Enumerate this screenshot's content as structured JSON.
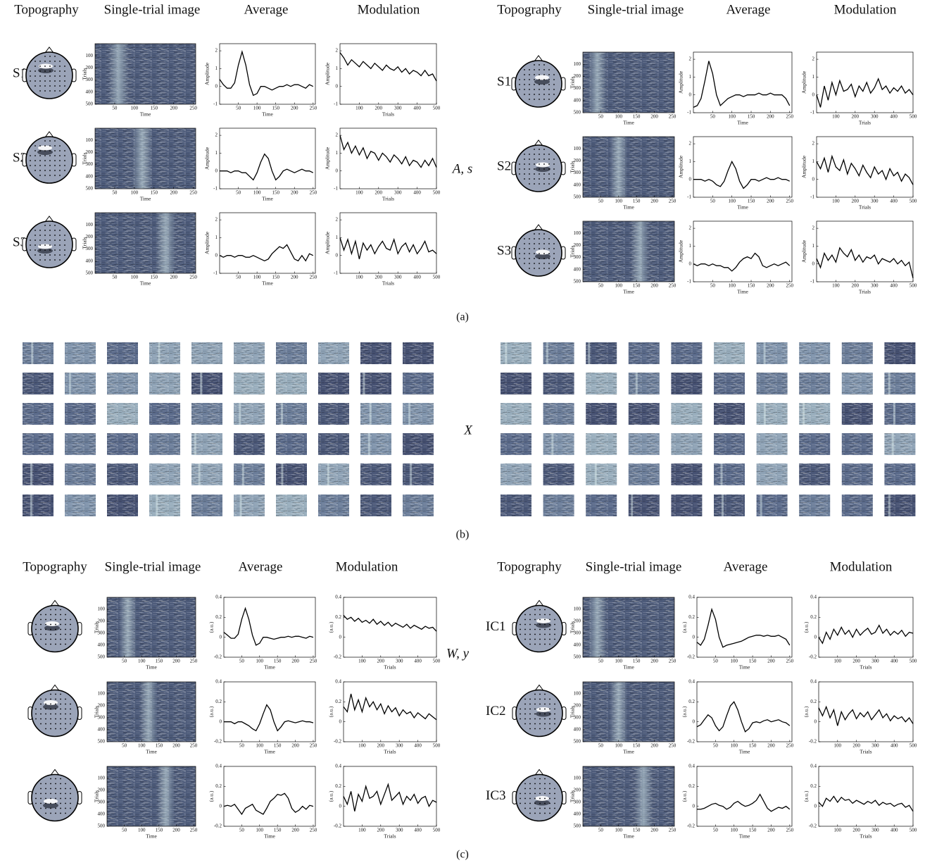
{
  "panel_a": {
    "caption": "(a)",
    "center_label": "A, s",
    "axes": {
      "image": {
        "xlabel": "Time",
        "ylabel": "Trials",
        "xlim": [
          0,
          256
        ],
        "xticks": [
          50,
          100,
          150,
          200,
          250
        ],
        "ylim": [
          0,
          500
        ],
        "yticks": [
          100,
          200,
          300,
          400,
          500
        ]
      },
      "average": {
        "xlabel": "Time",
        "ylabel": "Amplitude",
        "x": [
          0,
          10,
          20,
          30,
          40,
          50,
          60,
          70,
          80,
          90,
          100,
          110,
          120,
          130,
          140,
          150,
          160,
          170,
          180,
          190,
          200,
          210,
          220,
          230,
          240,
          250
        ],
        "xlim": [
          0,
          256
        ],
        "xticks": [
          50,
          100,
          150,
          200,
          250
        ],
        "ylim": [
          -1,
          2.4
        ],
        "yticks": [
          -1,
          0,
          1,
          2
        ]
      },
      "modulation": {
        "xlabel": "Trials",
        "ylabel": "Amplitude",
        "x": [
          0,
          20,
          40,
          60,
          80,
          100,
          120,
          140,
          160,
          180,
          200,
          220,
          240,
          260,
          280,
          300,
          320,
          340,
          360,
          380,
          400,
          420,
          440,
          460,
          480,
          500
        ],
        "xlim": [
          0,
          500
        ],
        "xticks": [
          100,
          200,
          300,
          400,
          500
        ],
        "ylim": [
          -1,
          2.4
        ],
        "yticks": [
          -1,
          0,
          1,
          2
        ]
      }
    },
    "halves": [
      {
        "headers": [
          "Topography",
          "Single-trial image",
          "Average",
          "Modulation"
        ],
        "rows": [
          {
            "label": "S1",
            "average": [
              0.4,
              0.1,
              -0.1,
              -0.1,
              0.2,
              1.2,
              1.95,
              1.2,
              0.1,
              -0.5,
              -0.4,
              0,
              0,
              -0.1,
              -0.2,
              -0.1,
              0,
              0,
              0.1,
              0,
              0.1,
              0.1,
              0,
              -0.1,
              0.1,
              0
            ],
            "modulation": [
              1.9,
              1.6,
              1.2,
              1.5,
              1.3,
              1.1,
              1.4,
              1.2,
              1.0,
              1.3,
              1.1,
              0.9,
              1.2,
              1.0,
              0.9,
              1.1,
              0.8,
              1.0,
              0.7,
              0.9,
              0.8,
              0.6,
              0.9,
              0.6,
              0.7,
              0.3
            ]
          },
          {
            "label": "S2",
            "average": [
              0,
              0,
              0,
              -0.1,
              0,
              0,
              -0.1,
              -0.1,
              -0.3,
              -0.5,
              -0.1,
              0.5,
              0.95,
              0.7,
              0,
              -0.5,
              -0.3,
              0,
              0.1,
              0,
              -0.1,
              0,
              0.1,
              0,
              0,
              -0.1
            ],
            "modulation": [
              2.0,
              1.2,
              1.6,
              1.0,
              1.4,
              0.9,
              1.3,
              0.7,
              1.1,
              1.0,
              0.6,
              1.0,
              0.8,
              0.5,
              0.9,
              0.7,
              0.4,
              0.8,
              0.3,
              0.6,
              0.5,
              0.2,
              0.6,
              0.3,
              0.7,
              0.2
            ]
          },
          {
            "label": "S3",
            "average": [
              0,
              -0.1,
              0,
              0,
              -0.1,
              0,
              0,
              -0.1,
              -0.1,
              0,
              -0.1,
              -0.2,
              -0.3,
              -0.2,
              0.1,
              0.3,
              0.5,
              0.4,
              0.6,
              0.2,
              -0.2,
              -0.3,
              0,
              -0.3,
              0.1,
              0
            ],
            "modulation": [
              1.0,
              0.3,
              0.9,
              0.1,
              0.8,
              -0.2,
              0.7,
              0.3,
              0.6,
              0.1,
              0.5,
              0.8,
              0.4,
              0.3,
              0.9,
              0.1,
              0.5,
              0.7,
              0.2,
              0.6,
              0.1,
              0.4,
              0.8,
              0.2,
              0.3,
              0.1
            ]
          }
        ]
      },
      {
        "headers": [
          "Topography",
          "Single-trial image",
          "Average",
          "Modulation"
        ],
        "rows": [
          {
            "label": "S1",
            "average": [
              -0.7,
              -0.6,
              -0.2,
              0.8,
              1.9,
              1.2,
              0,
              -0.6,
              -0.4,
              -0.2,
              -0.1,
              0,
              0,
              -0.1,
              0,
              0,
              0,
              0.1,
              0,
              0,
              0.1,
              0,
              0,
              0,
              -0.2,
              -0.6
            ],
            "modulation": [
              0,
              -0.7,
              0.5,
              -0.3,
              0.7,
              0,
              0.8,
              0.2,
              0.3,
              0.6,
              -0.1,
              0.5,
              0.2,
              0.7,
              0.1,
              0.4,
              0.9,
              0.3,
              0.5,
              0.1,
              0.4,
              0.2,
              0.5,
              0.1,
              0.3,
              0
            ]
          },
          {
            "label": "S2",
            "average": [
              0,
              0,
              0,
              -0.1,
              0,
              -0.1,
              -0.3,
              -0.4,
              -0.1,
              0.5,
              1.0,
              0.6,
              -0.1,
              -0.5,
              -0.3,
              0,
              0,
              -0.1,
              0,
              0.1,
              0,
              0,
              0.1,
              0,
              0,
              -0.1
            ],
            "modulation": [
              1.0,
              0.6,
              1.2,
              0.4,
              1.3,
              0.7,
              0.5,
              1.1,
              0.3,
              0.9,
              0.6,
              0.2,
              0.8,
              0.4,
              0.1,
              0.7,
              0.3,
              0.5,
              0,
              0.6,
              0.2,
              0.4,
              -0.1,
              0.3,
              0.1,
              -0.3
            ]
          },
          {
            "label": "S3",
            "average": [
              0,
              -0.1,
              0,
              0,
              -0.1,
              0,
              -0.1,
              -0.1,
              -0.2,
              -0.2,
              -0.4,
              -0.2,
              0.1,
              0.3,
              0.4,
              0.3,
              0.6,
              0.4,
              -0.1,
              -0.2,
              -0.1,
              0,
              -0.1,
              0,
              0.1,
              -0.1
            ],
            "modulation": [
              0.3,
              -0.2,
              0.6,
              0.2,
              0.5,
              0.1,
              0.9,
              0.6,
              0.4,
              0.8,
              0.2,
              0.5,
              0.1,
              0.4,
              0.3,
              0.5,
              0,
              0.3,
              0.2,
              0.1,
              0.3,
              0,
              0.2,
              -0.1,
              0.1,
              -0.8
            ]
          }
        ]
      }
    ]
  },
  "panel_b": {
    "caption": "(b)",
    "center_label": "X"
  },
  "panel_c": {
    "caption": "(c)",
    "center_label": "W, y",
    "axes": {
      "image": {
        "xlabel": "Time",
        "ylabel": "Trials",
        "xlim": [
          0,
          256
        ],
        "xticks": [
          50,
          100,
          150,
          200,
          250
        ],
        "ylim": [
          0,
          500
        ],
        "yticks": [
          100,
          200,
          300,
          400,
          500
        ]
      },
      "average": {
        "xlabel": "Time",
        "ylabel": "(a.u.)",
        "x": [
          0,
          10,
          20,
          30,
          40,
          50,
          60,
          70,
          80,
          90,
          100,
          110,
          120,
          130,
          140,
          150,
          160,
          170,
          180,
          190,
          200,
          210,
          220,
          230,
          240,
          250
        ],
        "xlim": [
          0,
          256
        ],
        "xticks": [
          50,
          100,
          150,
          200,
          250
        ],
        "ylim": [
          -0.2,
          0.4
        ],
        "yticks": [
          -0.2,
          0,
          0.2,
          0.4
        ]
      },
      "modulation": {
        "xlabel": "Trials",
        "ylabel": "(a.u.)",
        "x": [
          0,
          20,
          40,
          60,
          80,
          100,
          120,
          140,
          160,
          180,
          200,
          220,
          240,
          260,
          280,
          300,
          320,
          340,
          360,
          380,
          400,
          420,
          440,
          460,
          480,
          500
        ],
        "xlim": [
          0,
          500
        ],
        "xticks": [
          100,
          200,
          300,
          400,
          500
        ],
        "ylim": [
          -0.2,
          0.4
        ],
        "yticks": [
          -0.2,
          0,
          0.2,
          0.4
        ]
      }
    },
    "halves": [
      {
        "headers": [
          "Topography",
          "Single-trial image",
          "Average",
          "Modulation"
        ],
        "rows": [
          {
            "average": [
              0.05,
              0.02,
              -0.01,
              -0.01,
              0.03,
              0.18,
              0.29,
              0.18,
              0.02,
              -0.08,
              -0.06,
              0,
              0,
              -0.01,
              -0.02,
              -0.01,
              0,
              0,
              0.01,
              0,
              0.01,
              0.01,
              0,
              -0.01,
              0.01,
              0
            ],
            "modulation": [
              0.22,
              0.18,
              0.2,
              0.16,
              0.19,
              0.15,
              0.17,
              0.14,
              0.18,
              0.13,
              0.16,
              0.12,
              0.15,
              0.11,
              0.14,
              0.12,
              0.1,
              0.13,
              0.09,
              0.12,
              0.1,
              0.08,
              0.11,
              0.09,
              0.1,
              0.06
            ]
          },
          {
            "average": [
              0,
              0,
              0,
              -0.02,
              0,
              0,
              -0.02,
              -0.04,
              -0.07,
              -0.09,
              -0.02,
              0.08,
              0.17,
              0.12,
              0,
              -0.09,
              -0.05,
              0,
              0.01,
              0,
              -0.01,
              0,
              0.01,
              0,
              0,
              -0.01
            ],
            "modulation": [
              0.15,
              0.1,
              0.28,
              0.12,
              0.22,
              0.1,
              0.24,
              0.15,
              0.2,
              0.12,
              0.18,
              0.08,
              0.16,
              0.1,
              0.14,
              0.06,
              0.12,
              0.08,
              0.1,
              0.04,
              0.09,
              0.06,
              0.03,
              0.08,
              0.05,
              0.02
            ]
          },
          {
            "average": [
              0,
              0.01,
              0,
              0.02,
              -0.03,
              -0.08,
              -0.02,
              0,
              0.02,
              -0.04,
              -0.06,
              -0.08,
              -0.02,
              0.05,
              0.08,
              0.12,
              0.11,
              0.13,
              0.08,
              -0.02,
              -0.06,
              -0.04,
              0,
              -0.03,
              0.01,
              0
            ],
            "modulation": [
              0.1,
              0.02,
              0.15,
              -0.05,
              0.12,
              0.05,
              0.2,
              0.08,
              0.1,
              0.15,
              0.02,
              0.12,
              0.22,
              0.06,
              0.1,
              0.14,
              0.02,
              0.1,
              0.06,
              0.12,
              0.03,
              0.08,
              0.1,
              0.0,
              0.06,
              0.04
            ]
          }
        ]
      },
      {
        "headers": [
          "Topography",
          "Single-trial image",
          "Average",
          "Modulation"
        ],
        "rows": [
          {
            "label": "IC1",
            "average": [
              -0.05,
              -0.08,
              -0.02,
              0.12,
              0.28,
              0.18,
              0,
              -0.1,
              -0.08,
              -0.07,
              -0.06,
              -0.05,
              -0.04,
              -0.02,
              0,
              0.01,
              0.02,
              0.02,
              0.01,
              0.02,
              0.01,
              0.01,
              0.02,
              0,
              -0.02,
              -0.08
            ],
            "modulation": [
              0,
              -0.06,
              0.05,
              -0.02,
              0.08,
              0.02,
              0.1,
              0.03,
              0.07,
              0.0,
              0.08,
              0.02,
              0.06,
              0.09,
              0.03,
              0.05,
              0.12,
              0.04,
              0.08,
              0.02,
              0.06,
              0.03,
              0.07,
              0.01,
              0.05,
              0.04
            ]
          },
          {
            "label": "IC2",
            "average": [
              -0.05,
              -0.03,
              0.02,
              0.07,
              0.04,
              -0.04,
              -0.09,
              -0.05,
              0.06,
              0.16,
              0.2,
              0.12,
              0,
              -0.1,
              -0.07,
              -0.01,
              0,
              -0.01,
              0.01,
              0.02,
              0,
              0.01,
              0.02,
              0,
              -0.01,
              -0.04
            ],
            "modulation": [
              0.14,
              0.06,
              0.15,
              0.04,
              0.12,
              -0.04,
              0.1,
              0.02,
              0.08,
              0.12,
              0.03,
              0.09,
              0.05,
              0.1,
              0.02,
              0.07,
              0.12,
              0.04,
              0.08,
              0.01,
              0.06,
              0.03,
              0.05,
              0.0,
              0.04,
              -0.02
            ]
          },
          {
            "label": "IC3",
            "average": [
              -0.03,
              -0.03,
              -0.02,
              0,
              0.02,
              0.03,
              0.01,
              0,
              -0.03,
              -0.01,
              0.03,
              0.05,
              0.02,
              0,
              0.01,
              0.03,
              0.06,
              0.12,
              0.05,
              -0.02,
              -0.05,
              -0.03,
              -0.01,
              -0.02,
              0,
              -0.03
            ],
            "modulation": [
              0.04,
              0.0,
              0.08,
              0.05,
              0.1,
              0.04,
              0.09,
              0.06,
              0.07,
              0.03,
              0.06,
              0.04,
              0.02,
              0.05,
              0.03,
              0.06,
              0.01,
              0.04,
              0.02,
              0.03,
              0.0,
              0.02,
              0.03,
              -0.01,
              0.01,
              -0.05
            ]
          }
        ]
      }
    ]
  }
}
